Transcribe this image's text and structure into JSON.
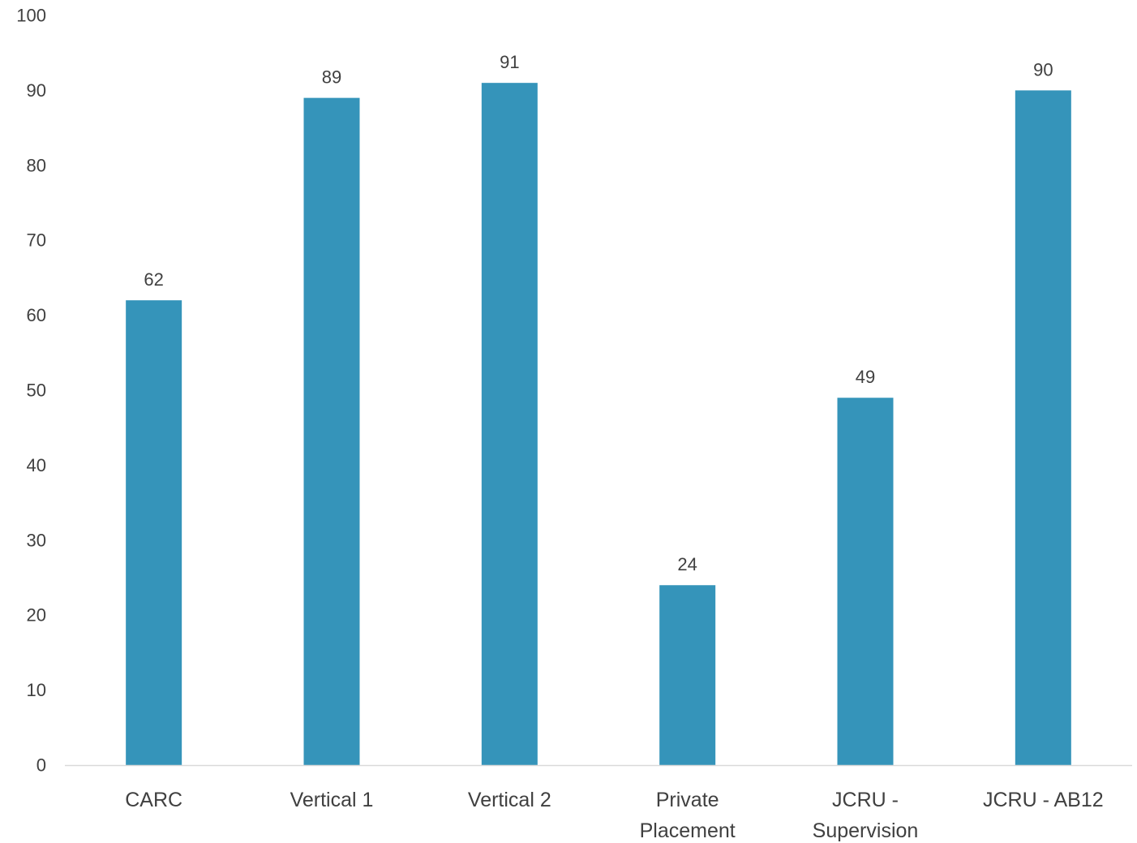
{
  "chart_data": {
    "type": "bar",
    "title": "",
    "xlabel": "",
    "ylabel": "",
    "categories": [
      [
        "CARC"
      ],
      [
        "Vertical 1"
      ],
      [
        "Vertical 2"
      ],
      [
        "Private",
        "Placement"
      ],
      [
        "JCRU -",
        "Supervision"
      ],
      [
        "JCRU - AB12"
      ]
    ],
    "values": [
      62,
      89,
      91,
      24,
      49,
      90
    ],
    "data_labels": [
      "62",
      "89",
      "91",
      "24",
      "49",
      "90"
    ],
    "ylim": [
      0,
      100
    ],
    "yticks": [
      0,
      10,
      20,
      30,
      40,
      50,
      60,
      70,
      80,
      90,
      100
    ],
    "grid": false,
    "legend": "none",
    "colors": {
      "bar": "#3594BA",
      "axis": "#D9D9D9",
      "text": "#404040"
    }
  }
}
